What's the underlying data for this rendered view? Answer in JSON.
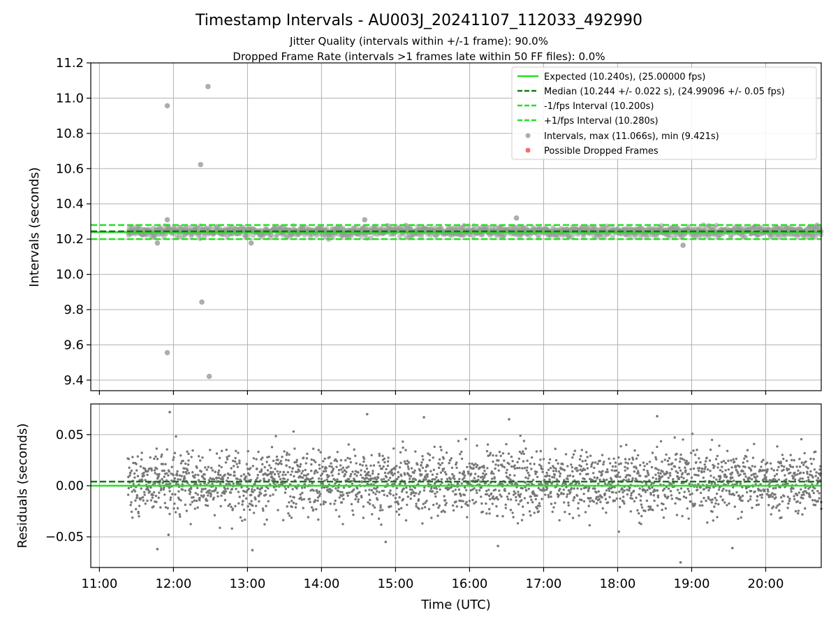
{
  "chart_data": [
    {
      "type": "scatter",
      "title": "Timestamp Intervals - AU003J_20241107_112033_492990",
      "subtitle_lines": [
        "Jitter Quality (intervals within +/-1 frame): 90.0%",
        "Dropped Frame Rate (intervals >1 frames late within 50 FF files): 0.0%"
      ],
      "xlabel": "",
      "ylabel": "Intervals (seconds)",
      "xlim": [
        "10:53",
        "20:45"
      ],
      "ylim": [
        9.34,
        11.2
      ],
      "yticks": [
        "9.4",
        "9.6",
        "9.8",
        "10.0",
        "10.2",
        "10.4",
        "10.6",
        "10.8",
        "11.0",
        "11.2"
      ],
      "grid": true,
      "legend_position": "upper-right",
      "reference_lines": [
        {
          "name": "Expected (10.240s), (25.00000 fps)",
          "y": 10.24,
          "color": "#22e022",
          "style": "solid"
        },
        {
          "name": "Median (10.244 +/- 0.022 s), (24.99096 +/- 0.05 fps)",
          "y": 10.244,
          "color": "#127a12",
          "style": "dashed"
        },
        {
          "name": "-1/fps Interval (10.200s)",
          "y": 10.2,
          "color": "#22e022",
          "style": "dashed"
        },
        {
          "name": "+1/fps Interval (10.280s)",
          "y": 10.28,
          "color": "#22e022",
          "style": "dashed"
        }
      ],
      "series": [
        {
          "name": "Intervals, max (11.066s), min (9.421s)",
          "color": "#999999",
          "x_range": [
            "11:23",
            "20:45"
          ],
          "typical_band": [
            10.2,
            10.29
          ],
          "outliers": [
            {
              "x": "11:55",
              "y": 10.957
            },
            {
              "x": "12:28",
              "y": 11.066
            },
            {
              "x": "12:22",
              "y": 10.623
            },
            {
              "x": "12:23",
              "y": 9.843
            },
            {
              "x": "11:55",
              "y": 9.556
            },
            {
              "x": "12:29",
              "y": 9.421
            },
            {
              "x": "11:55",
              "y": 10.31
            },
            {
              "x": "16:38",
              "y": 10.32
            },
            {
              "x": "14:35",
              "y": 10.31
            },
            {
              "x": "18:53",
              "y": 10.165
            },
            {
              "x": "13:03",
              "y": 10.178
            },
            {
              "x": "11:47",
              "y": 10.178
            }
          ]
        },
        {
          "name": "Possible Dropped Frames",
          "color": "#ee5555",
          "points": []
        }
      ]
    },
    {
      "type": "scatter",
      "title": "",
      "xlabel": "Time (UTC)",
      "ylabel": "Residuals (seconds)",
      "xlim": [
        "10:53",
        "20:45"
      ],
      "ylim": [
        -0.08,
        0.08
      ],
      "xticks": [
        "11:00",
        "12:00",
        "13:00",
        "14:00",
        "15:00",
        "16:00",
        "17:00",
        "18:00",
        "19:00",
        "20:00"
      ],
      "yticks": [
        "−0.05",
        "0.00",
        "0.05"
      ],
      "grid": true,
      "reference_lines": [
        {
          "name": "Expected",
          "y": 0.0,
          "color": "#22e022",
          "style": "solid"
        },
        {
          "name": "Median",
          "y": 0.004,
          "color": "#127a12",
          "style": "dashed"
        }
      ],
      "series": [
        {
          "name": "Residuals",
          "color": "#777777",
          "x_range": [
            "11:23",
            "20:45"
          ],
          "typical_band": [
            -0.045,
            0.055
          ],
          "outliers": [
            {
              "x": "11:57",
              "y": 0.072
            },
            {
              "x": "11:47",
              "y": -0.062
            },
            {
              "x": "11:56",
              "y": -0.048
            },
            {
              "x": "13:04",
              "y": -0.063
            },
            {
              "x": "18:51",
              "y": -0.075
            },
            {
              "x": "14:37",
              "y": 0.07
            },
            {
              "x": "18:32",
              "y": 0.068
            },
            {
              "x": "19:33",
              "y": -0.061
            },
            {
              "x": "15:23",
              "y": 0.067
            },
            {
              "x": "16:32",
              "y": 0.065
            },
            {
              "x": "14:52",
              "y": -0.055
            },
            {
              "x": "16:23",
              "y": -0.059
            }
          ]
        }
      ]
    }
  ]
}
